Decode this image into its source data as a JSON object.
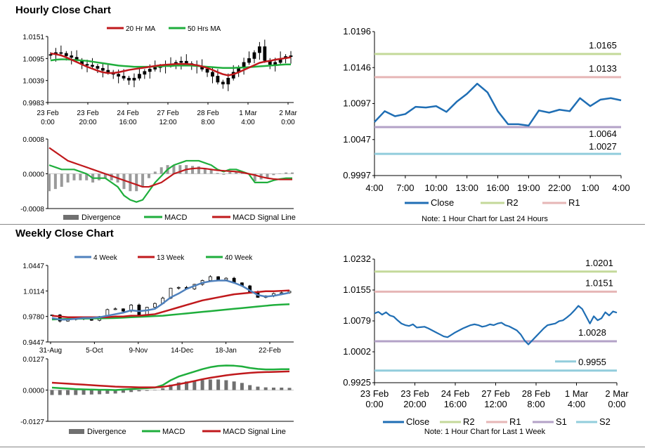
{
  "sections": {
    "hourly_title": "Hourly Close Chart",
    "weekly_title": "Weekly Close Chart"
  },
  "colors": {
    "ma_short": "#c0191c",
    "ma_long": "#1fae3c",
    "ma_4wk": "#4f81bd",
    "close": "#1f6eb4",
    "r2": "#c4d99a",
    "r1": "#e6b6b6",
    "s1": "#b3a2c7",
    "s2": "#92cddc",
    "divergence": "#707070"
  },
  "chart_data": [
    {
      "id": "hourly_price",
      "type": "candlestick",
      "legend": [
        "20 Hr MA",
        "50 Hrs MA"
      ],
      "x_ticks": [
        "23 Feb 0:00",
        "23 Feb 20:00",
        "24 Feb 16:00",
        "27 Feb 12:00",
        "28 Feb 8:00",
        "1 Mar 4:00",
        "2 Mar 0:00"
      ],
      "y_ticks": [
        "1.0151",
        "1.0095",
        "1.0039",
        "0.9983"
      ],
      "ylim": [
        0.9983,
        1.0151
      ],
      "close": [
        1.0105,
        1.011,
        1.0108,
        1.0102,
        1.0098,
        1.009,
        1.008,
        1.0078,
        1.0075,
        1.007,
        1.0065,
        1.006,
        1.0055,
        1.005,
        1.0045,
        1.004,
        1.0045,
        1.0055,
        1.0062,
        1.0068,
        1.0072,
        1.0075,
        1.0078,
        1.008,
        1.0085,
        1.0088,
        1.0082,
        1.0078,
        1.0075,
        1.0068,
        1.006,
        1.005,
        1.0035,
        1.003,
        1.0045,
        1.006,
        1.0072,
        1.0085,
        1.0095,
        1.011,
        1.0125,
        1.009,
        1.008,
        1.0085,
        1.0095,
        1.01,
        1.0102
      ],
      "ma20": [
        1.0108,
        1.0106,
        1.0103,
        1.0098,
        1.0092,
        1.0086,
        1.008,
        1.0074,
        1.0069,
        1.0064,
        1.006,
        1.0058,
        1.0058,
        1.006,
        1.0063,
        1.0066,
        1.0068,
        1.007,
        1.0072,
        1.0074,
        1.0076,
        1.0078,
        1.0079,
        1.008,
        1.0081,
        1.0081,
        1.0081,
        1.008,
        1.0078,
        1.0075,
        1.0071,
        1.0066,
        1.006,
        1.0055,
        1.0052,
        1.0055,
        1.006,
        1.0066,
        1.0072,
        1.0078,
        1.0084,
        1.0087,
        1.0089,
        1.0092,
        1.0094,
        1.0096,
        1.0098
      ],
      "ma50": [
        1.009,
        1.0092,
        1.0093,
        1.0093,
        1.0092,
        1.0091,
        1.009,
        1.0089,
        1.0087,
        1.0085,
        1.0083,
        1.0081,
        1.0079,
        1.0077,
        1.0076,
        1.0075,
        1.0074,
        1.0074,
        1.0074,
        1.0074,
        1.0075,
        1.0075,
        1.0076,
        1.0076,
        1.0077,
        1.0077,
        1.0077,
        1.0077,
        1.0076,
        1.0075,
        1.0074,
        1.0073,
        1.0072,
        1.0071,
        1.0071,
        1.0071,
        1.0072,
        1.0072,
        1.0073,
        1.0074,
        1.0075,
        1.0076,
        1.0077,
        1.0078,
        1.0079,
        1.008,
        1.008
      ]
    },
    {
      "id": "hourly_macd",
      "type": "bar+line",
      "legend": [
        "Divergence",
        "MACD",
        "MACD Signal Line"
      ],
      "y_ticks": [
        "0.0008",
        "0.0000",
        "-0.0008"
      ],
      "ylim": [
        -0.0008,
        0.0008
      ],
      "macd": [
        0.0002,
        0.00015,
        0.0001,
        0.0001,
        0.0001,
        5e-05,
        0.0,
        -0.0001,
        -0.0001,
        -0.0001,
        -0.0002,
        -0.0003,
        -0.0005,
        -0.0006,
        -0.00065,
        -0.0006,
        -0.0004,
        -0.0002,
        -5e-05,
        0.0001,
        0.0002,
        0.00025,
        0.0003,
        0.0003,
        0.0003,
        0.00025,
        0.0002,
        0.0001,
        5e-05,
        0.0001,
        0.0001,
        5e-05,
        0.0,
        -0.0002,
        -0.0002,
        -0.0002,
        -0.00015,
        -0.00012,
        -0.0001,
        -0.0001
      ],
      "signal": [
        0.0006,
        0.0005,
        0.0004,
        0.0003,
        0.00025,
        0.0002,
        0.00015,
        0.0001,
        5e-05,
        0.0,
        -5e-05,
        -0.0001,
        -0.00015,
        -0.0002,
        -0.00025,
        -0.0003,
        -0.0003,
        -0.00025,
        -0.0002,
        -0.0001,
        0.0,
        5e-05,
        0.0001,
        0.00012,
        0.00013,
        0.00012,
        0.0001,
        8e-05,
        7e-05,
        6e-05,
        5e-05,
        3e-05,
        0.0,
        -3e-05,
        -7e-05,
        -0.0001,
        -0.00012,
        -0.00013,
        -0.00013,
        -0.00013
      ],
      "divergence": [
        -0.0004,
        -0.00035,
        -0.0003,
        -0.0002,
        -0.00015,
        -0.00015,
        -0.00015,
        -0.0002,
        -0.00015,
        -0.0001,
        -0.00015,
        -0.0002,
        -0.00035,
        -0.0004,
        -0.0004,
        -0.0003,
        -0.0001,
        5e-05,
        0.00015,
        0.0002,
        0.0002,
        0.0002,
        0.0002,
        0.00018,
        0.00017,
        0.00013,
        0.0001,
        2e-05,
        -2e-05,
        4e-05,
        5e-05,
        2e-05,
        0.0,
        -0.00017,
        -0.00013,
        -0.0001,
        -3e-05,
        1e-05,
        3e-05,
        3e-05
      ]
    },
    {
      "id": "hourly_24h",
      "type": "line",
      "legend": [
        "Close",
        "R2",
        "R1"
      ],
      "x_ticks": [
        "4:00",
        "7:00",
        "10:00",
        "13:00",
        "16:00",
        "19:00",
        "22:00",
        "1:00",
        "4:00"
      ],
      "y_ticks": [
        "1.0196",
        "1.0146",
        "1.0097",
        "1.0047",
        "0.9997"
      ],
      "ylim": [
        0.9997,
        1.0196
      ],
      "close": [
        1.0071,
        1.0086,
        1.0079,
        1.0082,
        1.0092,
        1.0091,
        1.0093,
        1.0085,
        1.0099,
        1.011,
        1.0124,
        1.0112,
        1.0086,
        1.0068,
        1.0068,
        1.0066,
        1.0087,
        1.0084,
        1.0088,
        1.0086,
        1.0104,
        1.0093,
        1.0102,
        1.0104,
        1.0101
      ],
      "levels": [
        {
          "name": "R2",
          "value": 1.0165,
          "label": "1.0165"
        },
        {
          "name": "R1",
          "value": 1.0133,
          "label": "1.0133"
        },
        {
          "name": "S1",
          "value": 1.0064,
          "label": "1.0064"
        },
        {
          "name": "S2",
          "value": 1.0027,
          "label": "1.0027"
        }
      ],
      "note": "Note: 1 Hour Chart for Last 24 Hours"
    },
    {
      "id": "weekly_price",
      "type": "candlestick",
      "legend": [
        "4 Week",
        "13 Week",
        "40 Week"
      ],
      "x_ticks": [
        "31-Aug",
        "5-Oct",
        "9-Nov",
        "14-Dec",
        "18-Jan",
        "22-Feb"
      ],
      "y_ticks": [
        "1.0447",
        "1.0114",
        "0.9780",
        "0.9447"
      ],
      "ylim": [
        0.9447,
        1.0447
      ],
      "close": [
        0.98,
        0.972,
        0.974,
        0.976,
        0.975,
        0.973,
        0.978,
        0.987,
        0.988,
        0.985,
        0.993,
        0.98,
        0.99,
        0.995,
        1.002,
        1.015,
        1.016,
        1.014,
        1.02,
        1.025,
        1.03,
        1.026,
        1.028,
        1.022,
        1.018,
        1.01,
        1.003,
        1.005,
        1.008,
        1.009,
        1.011
      ],
      "ma4": [
        0.976,
        0.974,
        0.974,
        0.975,
        0.976,
        0.976,
        0.977,
        0.979,
        0.981,
        0.983,
        0.986,
        0.985,
        0.986,
        0.988,
        0.995,
        1.003,
        1.008,
        1.014,
        1.018,
        1.022,
        1.024,
        1.025,
        1.025,
        1.022,
        1.018,
        1.012,
        1.006,
        1.004,
        1.005,
        1.007,
        1.009
      ],
      "ma13": [
        0.979,
        0.978,
        0.977,
        0.977,
        0.977,
        0.977,
        0.977,
        0.977,
        0.978,
        0.978,
        0.979,
        0.979,
        0.98,
        0.981,
        0.984,
        0.987,
        0.99,
        0.993,
        0.996,
        0.999,
        1.001,
        1.003,
        1.005,
        1.007,
        1.008,
        1.009,
        1.01,
        1.011,
        1.011,
        1.0115,
        1.012
      ],
      "ma40": [
        0.974,
        0.9745,
        0.9748,
        0.975,
        0.9752,
        0.9754,
        0.9756,
        0.9758,
        0.976,
        0.9765,
        0.977,
        0.9775,
        0.978,
        0.9785,
        0.979,
        0.98,
        0.981,
        0.982,
        0.983,
        0.984,
        0.985,
        0.986,
        0.987,
        0.988,
        0.989,
        0.99,
        0.991,
        0.992,
        0.993,
        0.9935,
        0.994
      ]
    },
    {
      "id": "weekly_macd",
      "type": "bar+line",
      "legend": [
        "Divergence",
        "MACD",
        "MACD Signal Line"
      ],
      "y_ticks": [
        "0.0127",
        "0.0000",
        "-0.0127"
      ],
      "ylim": [
        -0.0127,
        0.0127
      ],
      "macd": [
        0.001,
        0.0008,
        0.0006,
        0.0004,
        0.0003,
        0.0002,
        0.0001,
        0.0001,
        0.0,
        0.0002,
        0.0004,
        0.0006,
        0.0008,
        0.001,
        0.002,
        0.004,
        0.0055,
        0.0065,
        0.0075,
        0.0085,
        0.0093,
        0.0098,
        0.01,
        0.0099,
        0.0096,
        0.009,
        0.0086,
        0.0084,
        0.0084,
        0.0085,
        0.0085
      ],
      "signal": [
        0.003,
        0.0028,
        0.0026,
        0.0024,
        0.0022,
        0.002,
        0.0018,
        0.0016,
        0.0014,
        0.0013,
        0.0012,
        0.0011,
        0.0011,
        0.0011,
        0.0013,
        0.0018,
        0.0024,
        0.003,
        0.0037,
        0.0044,
        0.005,
        0.0055,
        0.006,
        0.0064,
        0.0067,
        0.007,
        0.0072,
        0.0073,
        0.0074,
        0.0075,
        0.0076
      ],
      "divergence": [
        -0.002,
        -0.002,
        -0.002,
        -0.002,
        -0.0019,
        -0.0018,
        -0.0017,
        -0.0015,
        -0.0014,
        -0.0011,
        -0.0008,
        -0.0005,
        -0.0003,
        -0.0001,
        0.0007,
        0.0022,
        0.0031,
        0.0035,
        0.0038,
        0.0041,
        0.0043,
        0.0043,
        0.004,
        0.0035,
        0.0029,
        0.002,
        0.0014,
        0.0011,
        0.001,
        0.001,
        0.0009
      ]
    },
    {
      "id": "weekly_1wk",
      "type": "line",
      "legend": [
        "Close",
        "R2",
        "R1",
        "S1",
        "S2"
      ],
      "x_ticks": [
        "23 Feb 0:00",
        "23 Feb 20:00",
        "24 Feb 16:00",
        "27 Feb 12:00",
        "28 Feb 8:00",
        "1 Mar 4:00",
        "2 Mar 0:00"
      ],
      "y_ticks": [
        "1.0232",
        "1.0155",
        "1.0079",
        "1.0002",
        "0.9925"
      ],
      "ylim": [
        0.9925,
        1.0232
      ],
      "close": [
        1.0097,
        1.0101,
        1.0094,
        1.01,
        1.0092,
        1.0089,
        1.008,
        1.0072,
        1.0068,
        1.0066,
        1.007,
        1.0062,
        1.0063,
        1.0064,
        1.006,
        1.0055,
        1.005,
        1.0045,
        1.004,
        1.0038,
        1.0044,
        1.005,
        1.0055,
        1.006,
        1.0064,
        1.0068,
        1.007,
        1.0068,
        1.0064,
        1.0066,
        1.007,
        1.0068,
        1.0072,
        1.0074,
        1.0068,
        1.0065,
        1.006,
        1.0055,
        1.0045,
        1.003,
        1.002,
        1.003,
        1.004,
        1.005,
        1.006,
        1.0068,
        1.007,
        1.0072,
        1.0078,
        1.008,
        1.0087,
        1.0095,
        1.0105,
        1.0116,
        1.0108,
        1.009,
        1.0072,
        1.009,
        1.008,
        1.0085,
        1.01,
        1.0092,
        1.0102,
        1.0099
      ],
      "levels": [
        {
          "name": "R2",
          "value": 1.0201,
          "label": "1.0201"
        },
        {
          "name": "R1",
          "value": 1.0151,
          "label": "1.0151"
        },
        {
          "name": "S1",
          "value": 1.0028,
          "label": "1.0028"
        },
        {
          "name": "S2",
          "value": 0.9955,
          "label": "0.9955"
        }
      ],
      "note": "Note: 1 Hour Chart for Last 1 Week"
    }
  ]
}
